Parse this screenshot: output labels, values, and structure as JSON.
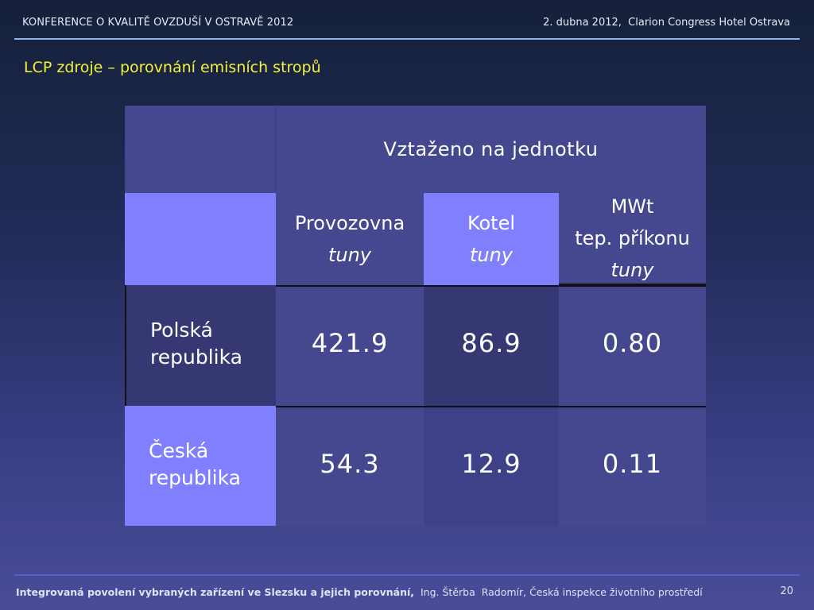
{
  "header": {
    "left": "KONFERENCE O KVALITĚ OVZDUŠÍ V OSTRAVĚ 2012",
    "right": "2. dubna 2012,  Clarion Congress Hotel Ostrava"
  },
  "title": "LCP zdroje – porovnání emisních stropů",
  "table": {
    "group_header": "Vztaženo na  jednotku",
    "columns": [
      {
        "name": "Provozovna",
        "unit": "tuny"
      },
      {
        "name": "Kotel",
        "unit": "tuny"
      },
      {
        "name": "MWt",
        "sub": "tep. příkonu",
        "unit": "tuny"
      }
    ],
    "rows": [
      {
        "label_line1": "Polská",
        "label_line2": "republika",
        "values": [
          "421.9",
          "86.9",
          "0.80"
        ]
      },
      {
        "label_line1": "Česká",
        "label_line2": "republika",
        "values": [
          "54.3",
          "12.9",
          "0.11"
        ]
      }
    ]
  },
  "footer": {
    "bold_text": "Integrovaná povolení vybraných zařízení ve Slezsku a jejich porovnání,",
    "normal_text": "  Ing. Štěrba  Radomír, Česká inspekce životního prostředí",
    "page": "20"
  }
}
